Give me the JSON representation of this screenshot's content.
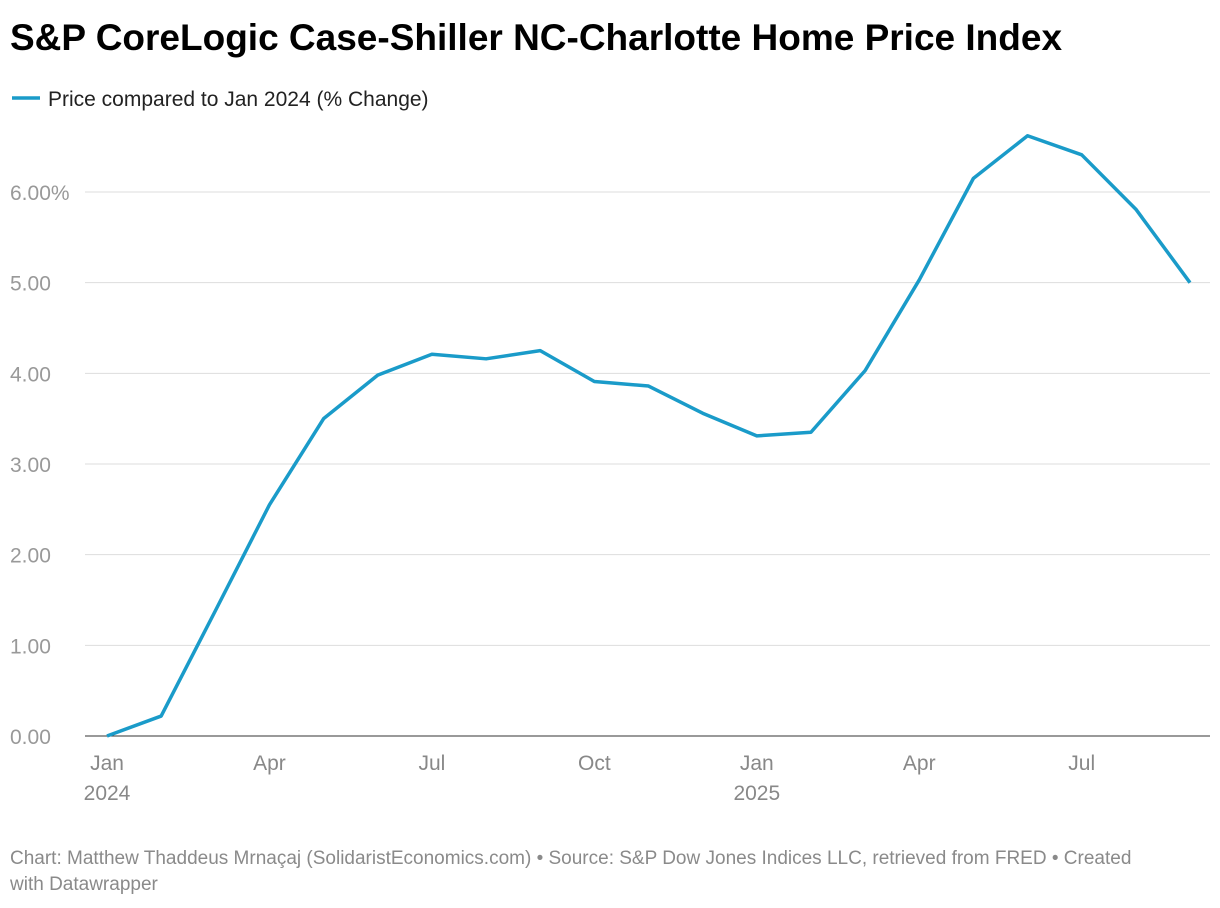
{
  "chart_data": {
    "type": "line",
    "title": "S&P CoreLogic Case-Shiller NC-Charlotte Home Price Index",
    "categories": [
      "Jan 2024",
      null,
      null,
      "Apr",
      null,
      null,
      "Jul",
      null,
      null,
      "Oct",
      null,
      null,
      "Jan 2025",
      null,
      null,
      "Apr",
      null,
      null,
      "Jul",
      null,
      null
    ],
    "series": [
      {
        "name": "Price compared to Jan 2024 (% Change)",
        "color": "#1a9bc9",
        "values": [
          0,
          0.22,
          1.38,
          2.55,
          3.5,
          3.98,
          4.21,
          4.16,
          4.25,
          3.91,
          3.86,
          3.56,
          3.31,
          3.35,
          4.03,
          5.03,
          6.15,
          6.62,
          6.41,
          5.81,
          5.0
        ]
      }
    ],
    "ylim": [
      0,
      6.7
    ],
    "yticks": [
      {
        "value": 0,
        "label": "0.00"
      },
      {
        "value": 1,
        "label": "1.00"
      },
      {
        "value": 2,
        "label": "2.00"
      },
      {
        "value": 3,
        "label": "3.00"
      },
      {
        "value": 4,
        "label": "4.00"
      },
      {
        "value": 5,
        "label": "5.00"
      },
      {
        "value": 6,
        "label": "6.00%"
      }
    ],
    "grid": true,
    "footer": "Chart: Matthew Thaddeus Mrnaçaj (SolidaristEconomics.com) • Source: S&P Dow Jones Indices LLC, retrieved from FRED • Created with Datawrapper"
  }
}
